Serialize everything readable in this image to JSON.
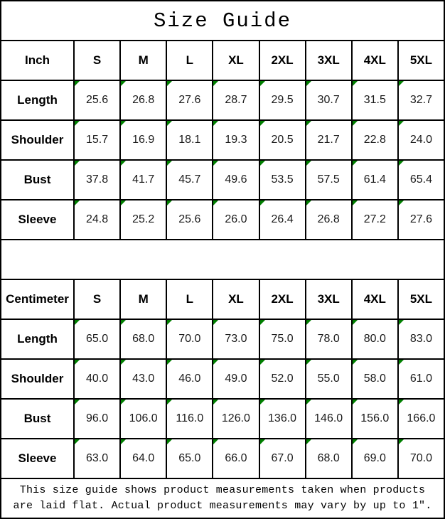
{
  "title": "Size Guide",
  "colors": {
    "triangle_green": "#008000",
    "border_black": "#000000",
    "background": "#ffffff"
  },
  "sizes": [
    "S",
    "M",
    "L",
    "XL",
    "2XL",
    "3XL",
    "4XL",
    "5XL"
  ],
  "tables": [
    {
      "unit_label": "Inch",
      "rows": [
        {
          "label": "Length",
          "values": [
            "25.6",
            "26.8",
            "27.6",
            "28.7",
            "29.5",
            "30.7",
            "31.5",
            "32.7"
          ]
        },
        {
          "label": "Shoulder",
          "values": [
            "15.7",
            "16.9",
            "18.1",
            "19.3",
            "20.5",
            "21.7",
            "22.8",
            "24.0"
          ]
        },
        {
          "label": "Bust",
          "values": [
            "37.8",
            "41.7",
            "45.7",
            "49.6",
            "53.5",
            "57.5",
            "61.4",
            "65.4"
          ]
        },
        {
          "label": "Sleeve",
          "values": [
            "24.8",
            "25.2",
            "25.6",
            "26.0",
            "26.4",
            "26.8",
            "27.2",
            "27.6"
          ]
        }
      ]
    },
    {
      "unit_label": "Centimeter",
      "rows": [
        {
          "label": "Length",
          "values": [
            "65.0",
            "68.0",
            "70.0",
            "73.0",
            "75.0",
            "78.0",
            "80.0",
            "83.0"
          ]
        },
        {
          "label": "Shoulder",
          "values": [
            "40.0",
            "43.0",
            "46.0",
            "49.0",
            "52.0",
            "55.0",
            "58.0",
            "61.0"
          ]
        },
        {
          "label": "Bust",
          "values": [
            "96.0",
            "106.0",
            "116.0",
            "126.0",
            "136.0",
            "146.0",
            "156.0",
            "166.0"
          ]
        },
        {
          "label": "Sleeve",
          "values": [
            "63.0",
            "64.0",
            "65.0",
            "66.0",
            "67.0",
            "68.0",
            "69.0",
            "70.0"
          ]
        }
      ]
    }
  ],
  "footer": {
    "line1": "This size guide shows product measurements taken when products",
    "line2": "are laid flat. Actual product measurements may vary by up to 1″."
  }
}
